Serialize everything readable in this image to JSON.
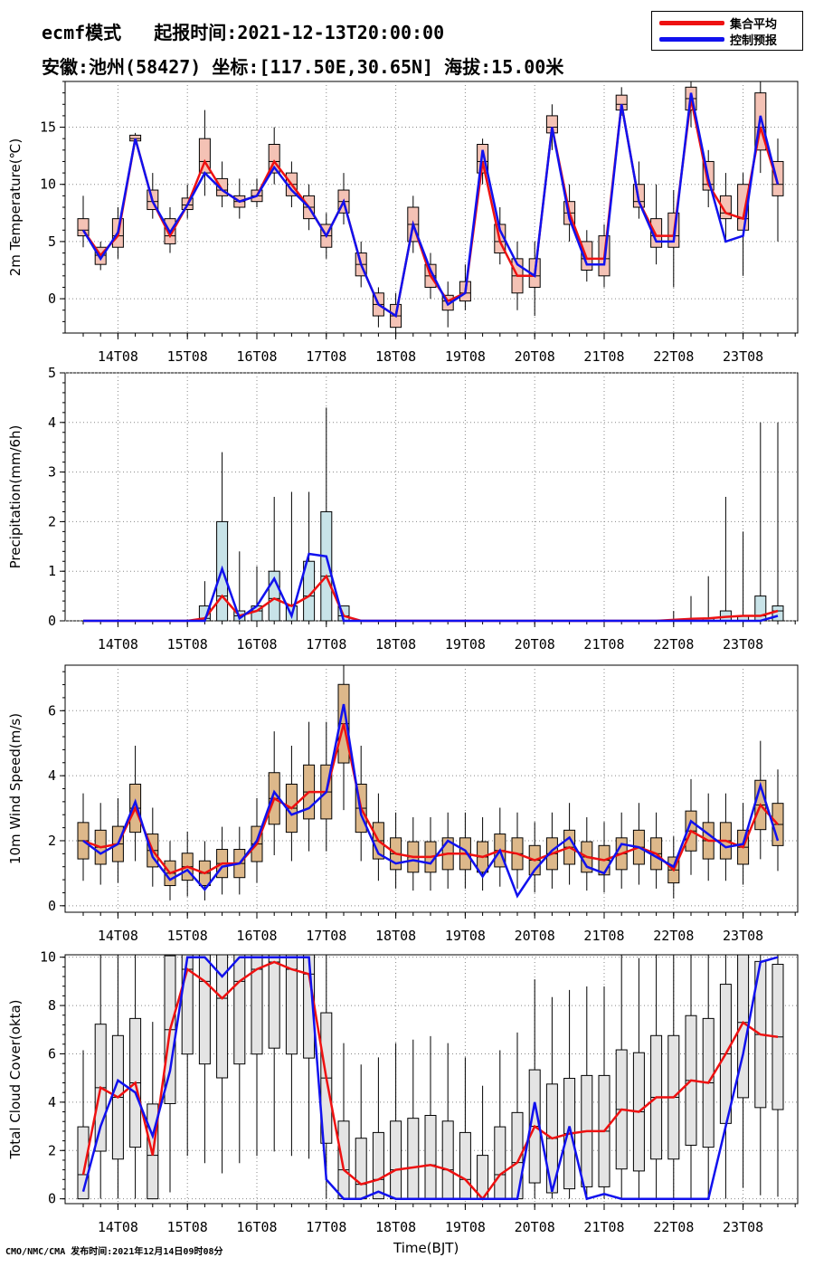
{
  "header": {
    "line1": "ecmf模式   起报时间:2021-12-13T20:00:00",
    "line2": "安徽:池州(58427) 坐标:[117.50E,30.65N] 海拔:15.00米"
  },
  "legend": {
    "items": [
      {
        "label": "集合平均",
        "color": "#ee1111"
      },
      {
        "label": "控制预报",
        "color": "#1111ee"
      }
    ]
  },
  "footer": {
    "credit": "CMO/NMC/CMA 发布时间:2021年12月14日09时08分",
    "xlabel": "Time(BJT)"
  },
  "chart_data": [
    {
      "type": "box",
      "name": "temperature",
      "ylabel": "2m Temperature(℃)",
      "ylim": [
        -3,
        19
      ],
      "yticks": [
        0,
        5,
        10,
        15
      ],
      "box_color": "#f4c2b5",
      "x_ticks": [
        "14T08",
        "15T08",
        "16T08",
        "17T08",
        "18T08",
        "19T08",
        "20T08",
        "21T08",
        "22T08",
        "23T08"
      ],
      "mean": [
        6,
        3.8,
        5.5,
        14,
        8.5,
        5.5,
        8.2,
        12,
        9.5,
        8.5,
        9,
        12,
        10,
        8,
        5.5,
        8.5,
        3,
        -0.5,
        -1.5,
        6.5,
        2,
        -0.2,
        0.5,
        12,
        5,
        2,
        2,
        15,
        7.5,
        3.5,
        3.5,
        17,
        8.5,
        5.5,
        5.5,
        17.5,
        10,
        7.5,
        7,
        15,
        10
      ],
      "control": [
        6,
        3.5,
        5.8,
        14,
        8.5,
        5.8,
        8.2,
        11,
        9.5,
        8.5,
        9,
        11.5,
        9.5,
        8,
        5.5,
        8.5,
        3,
        -0.5,
        -1.5,
        6.5,
        2.5,
        -0.5,
        0.5,
        13,
        6,
        3,
        2,
        15,
        7,
        3,
        3,
        17,
        8.5,
        5,
        5,
        18,
        10.5,
        5,
        5.5,
        16,
        10
      ],
      "q1": [
        5.5,
        3,
        4.5,
        13.8,
        7.8,
        4.8,
        7.8,
        11,
        9,
        8,
        8.5,
        11,
        9,
        7,
        4.5,
        7.5,
        2,
        -1.5,
        -2.5,
        5,
        1,
        -1,
        -0.2,
        11,
        4,
        0.5,
        1,
        14.5,
        6.5,
        2.5,
        2,
        16.5,
        8,
        4.5,
        4.5,
        16.5,
        9.5,
        7,
        6,
        13,
        9
      ],
      "q3": [
        7,
        4.5,
        7,
        14.3,
        9.5,
        7,
        8.8,
        14,
        10.5,
        9,
        9.5,
        13.5,
        11,
        9,
        6.5,
        9.5,
        4,
        0.5,
        -0.5,
        8,
        3,
        0.3,
        1.5,
        13.5,
        6.5,
        3.5,
        3.5,
        16,
        8.5,
        5,
        5.5,
        17.8,
        10,
        7,
        7.5,
        18.5,
        12,
        9,
        10,
        18,
        12
      ],
      "lo": [
        4.5,
        2.5,
        3.5,
        13.5,
        7,
        4,
        7,
        9,
        8,
        7,
        8,
        10,
        8,
        6,
        3.5,
        6.5,
        1,
        -2.5,
        -3,
        4,
        0,
        -2.5,
        -1,
        10,
        3,
        -1,
        -1.5,
        13,
        5,
        1.5,
        1,
        16,
        7,
        3,
        1,
        15,
        8,
        5,
        2,
        11,
        5
      ],
      "hi": [
        9,
        5,
        8,
        14.5,
        11,
        8,
        10,
        16.5,
        12,
        10.5,
        10.5,
        15,
        12,
        10,
        7.5,
        11,
        5,
        1,
        0.5,
        9,
        4,
        1.5,
        3,
        14,
        8,
        5,
        5,
        17,
        10,
        6,
        6.5,
        18.5,
        12,
        10,
        9.5,
        19,
        13,
        11,
        11,
        19,
        14
      ]
    },
    {
      "type": "box",
      "name": "precipitation",
      "ylabel": "Precipitation(mm/6h)",
      "ylim": [
        0,
        5
      ],
      "yticks": [
        0,
        1,
        2,
        3,
        4,
        5
      ],
      "box_color": "#c8e3e8",
      "x_ticks": [
        "14T08",
        "15T08",
        "16T08",
        "17T08",
        "18T08",
        "19T08",
        "20T08",
        "21T08",
        "22T08",
        "23T08"
      ],
      "mean": [
        0,
        0,
        0,
        0,
        0,
        0,
        0,
        0.05,
        0.5,
        0.1,
        0.2,
        0.45,
        0.3,
        0.5,
        0.9,
        0.1,
        0,
        0,
        0,
        0,
        0,
        0,
        0,
        0,
        0,
        0,
        0,
        0,
        0,
        0,
        0,
        0,
        0,
        0,
        0.02,
        0.04,
        0.05,
        0.08,
        0.1,
        0.1,
        0.2
      ],
      "control": [
        0,
        0,
        0,
        0,
        0,
        0,
        0,
        0,
        1.05,
        0.05,
        0.3,
        0.85,
        0.1,
        1.35,
        1.3,
        0,
        0,
        0,
        0,
        0,
        0,
        0,
        0,
        0,
        0,
        0,
        0,
        0,
        0,
        0,
        0,
        0,
        0,
        0,
        0,
        0,
        0,
        0,
        0,
        0,
        0.1
      ],
      "q1": [
        0,
        0,
        0,
        0,
        0,
        0,
        0,
        0,
        0,
        0,
        0,
        0,
        0,
        0,
        0,
        0,
        0,
        0,
        0,
        0,
        0,
        0,
        0,
        0,
        0,
        0,
        0,
        0,
        0,
        0,
        0,
        0,
        0,
        0,
        0,
        0,
        0,
        0,
        0,
        0,
        0
      ],
      "q3": [
        0,
        0,
        0,
        0,
        0,
        0,
        0,
        0.3,
        2,
        0.2,
        0.3,
        1,
        0.3,
        1.2,
        2.2,
        0.3,
        0,
        0,
        0,
        0,
        0,
        0,
        0,
        0,
        0,
        0,
        0,
        0,
        0,
        0,
        0,
        0,
        0,
        0,
        0,
        0,
        0.05,
        0.2,
        0.1,
        0.5,
        0.3
      ],
      "lo": [
        0,
        0,
        0,
        0,
        0,
        0,
        0,
        0,
        0,
        0,
        0,
        0,
        0,
        0,
        0,
        0,
        0,
        0,
        0,
        0,
        0,
        0,
        0,
        0,
        0,
        0,
        0,
        0,
        0,
        0,
        0,
        0,
        0,
        0,
        0,
        0,
        0,
        0,
        0,
        0,
        0
      ],
      "hi": [
        0,
        0,
        0,
        0,
        0,
        0,
        0,
        0.8,
        3.4,
        1.4,
        1.1,
        2.5,
        2.6,
        2.6,
        4.3,
        0.3,
        0,
        0,
        0,
        0,
        0,
        0,
        0,
        0,
        0,
        0,
        0,
        0,
        0,
        0,
        0,
        0,
        0,
        0,
        0.2,
        0.5,
        0.9,
        2.5,
        1.8,
        4,
        4
      ]
    },
    {
      "type": "box",
      "name": "wind",
      "ylabel": "10m Wind Speed(m/s)",
      "ylim": [
        -0.2,
        7.4
      ],
      "yticks": [
        0,
        2,
        4,
        6
      ],
      "box_color": "#ddb88a",
      "x_ticks": [
        "14T08",
        "15T08",
        "16T08",
        "17T08",
        "18T08",
        "19T08",
        "20T08",
        "21T08",
        "22T08",
        "23T08"
      ],
      "mean": [
        2,
        1.8,
        1.9,
        3,
        1.7,
        1,
        1.2,
        1,
        1.3,
        1.3,
        1.9,
        3.3,
        3,
        3.5,
        3.5,
        5.6,
        3,
        2,
        1.6,
        1.5,
        1.5,
        1.6,
        1.6,
        1.5,
        1.7,
        1.6,
        1.4,
        1.6,
        1.8,
        1.5,
        1.4,
        1.6,
        1.8,
        1.6,
        1.1,
        2.3,
        2,
        2,
        1.8,
        3.1,
        2.5
      ],
      "control": [
        2,
        1.6,
        1.9,
        3.2,
        1.5,
        0.8,
        1.1,
        0.5,
        1.2,
        1.3,
        2,
        3.5,
        2.8,
        3,
        3.5,
        6.2,
        2.8,
        1.6,
        1.3,
        1.4,
        1.3,
        2,
        1.7,
        0.9,
        1.7,
        0.3,
        1.1,
        1.7,
        2.1,
        1.2,
        1,
        1.9,
        1.8,
        1.5,
        1.2,
        2.6,
        2.2,
        1.8,
        1.9,
        3.7,
        2
      ]
    },
    {
      "type": "box",
      "name": "cloud",
      "ylabel": "Total Cloud Cover(okta)",
      "ylim": [
        -0.2,
        10.1
      ],
      "yticks": [
        0,
        2,
        4,
        6,
        8,
        10
      ],
      "box_color": "#e4e4e4",
      "x_ticks": [
        "14T08",
        "15T08",
        "16T08",
        "17T08",
        "18T08",
        "19T08",
        "20T08",
        "21T08",
        "22T08",
        "23T08"
      ],
      "mean": [
        1,
        4.6,
        4.2,
        4.8,
        1.8,
        7,
        9.5,
        9,
        8.3,
        9,
        9.5,
        9.8,
        9.5,
        9.3,
        5,
        1.2,
        0.6,
        0.8,
        1.2,
        1.3,
        1.4,
        1.2,
        0.8,
        0,
        1,
        1.5,
        3,
        2.5,
        2.7,
        2.8,
        2.8,
        3.7,
        3.6,
        4.2,
        4.2,
        4.9,
        4.8,
        6,
        7.3,
        6.8,
        6.7
      ],
      "control": [
        0.3,
        3,
        4.9,
        4.4,
        2.6,
        5.3,
        10,
        10,
        9.2,
        10,
        10,
        10,
        10,
        10,
        0.8,
        0,
        0,
        0.3,
        0,
        0,
        0,
        0,
        0,
        0,
        0,
        0,
        4,
        0.3,
        3,
        0,
        0.2,
        0,
        0,
        0,
        0,
        0,
        0,
        3,
        6,
        9.8,
        10
      ]
    }
  ]
}
